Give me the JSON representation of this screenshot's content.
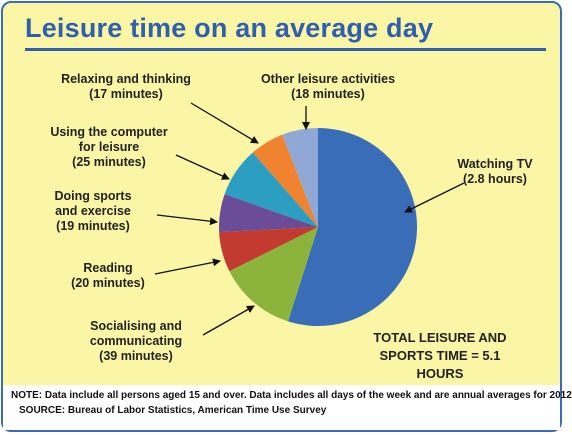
{
  "title": "Leisure time on an average day",
  "chart_data": {
    "type": "pie",
    "title": "Leisure time on an average day",
    "slices": [
      {
        "name": "Watching TV",
        "value_text": "(2.8 hours)",
        "minutes": 168,
        "color": "#3a6db8"
      },
      {
        "name": "Socialising and communicating",
        "value_text": "(39 minutes)",
        "minutes": 39,
        "color": "#8cb43c"
      },
      {
        "name": "Reading",
        "value_text": "(20 minutes)",
        "minutes": 20,
        "color": "#c23a30"
      },
      {
        "name": "Doing sports and exercise",
        "value_text": "(19 minutes)",
        "minutes": 19,
        "color": "#6b4c98"
      },
      {
        "name": "Using the computer for leisure",
        "value_text": "(25 minutes)",
        "minutes": 25,
        "color": "#2c9ec2"
      },
      {
        "name": "Relaxing and thinking",
        "value_text": "(17 minutes)",
        "minutes": 17,
        "color": "#ef8330"
      },
      {
        "name": "Other leisure activities",
        "value_text": "(18 minutes)",
        "minutes": 18,
        "color": "#8fa8d6"
      }
    ]
  },
  "labels": [
    {
      "lines": [
        "Watching TV",
        "(2.8 hours)"
      ]
    },
    {
      "lines": [
        "Socialising and",
        "communicating",
        "(39 minutes)"
      ]
    },
    {
      "lines": [
        "Reading",
        "(20 minutes)"
      ]
    },
    {
      "lines": [
        "Doing sports",
        "and exercise",
        "(19 minutes)"
      ]
    },
    {
      "lines": [
        "Using the computer",
        "for leisure",
        "(25 minutes)"
      ]
    },
    {
      "lines": [
        "Relaxing and thinking",
        "(17 minutes)"
      ]
    },
    {
      "lines": [
        "Other leisure activities",
        "(18 minutes)"
      ]
    }
  ],
  "total": {
    "line1": "TOTAL LEISURE AND",
    "line2": "SPORTS TIME = 5.1 HOURS"
  },
  "notes": {
    "note": "NOTE: Data include all persons aged 15 and over. Data includes all days of the week and are annual averages for 2012",
    "source": "SOURCE: Bureau of Labor Statistics, American Time Use Survey"
  }
}
